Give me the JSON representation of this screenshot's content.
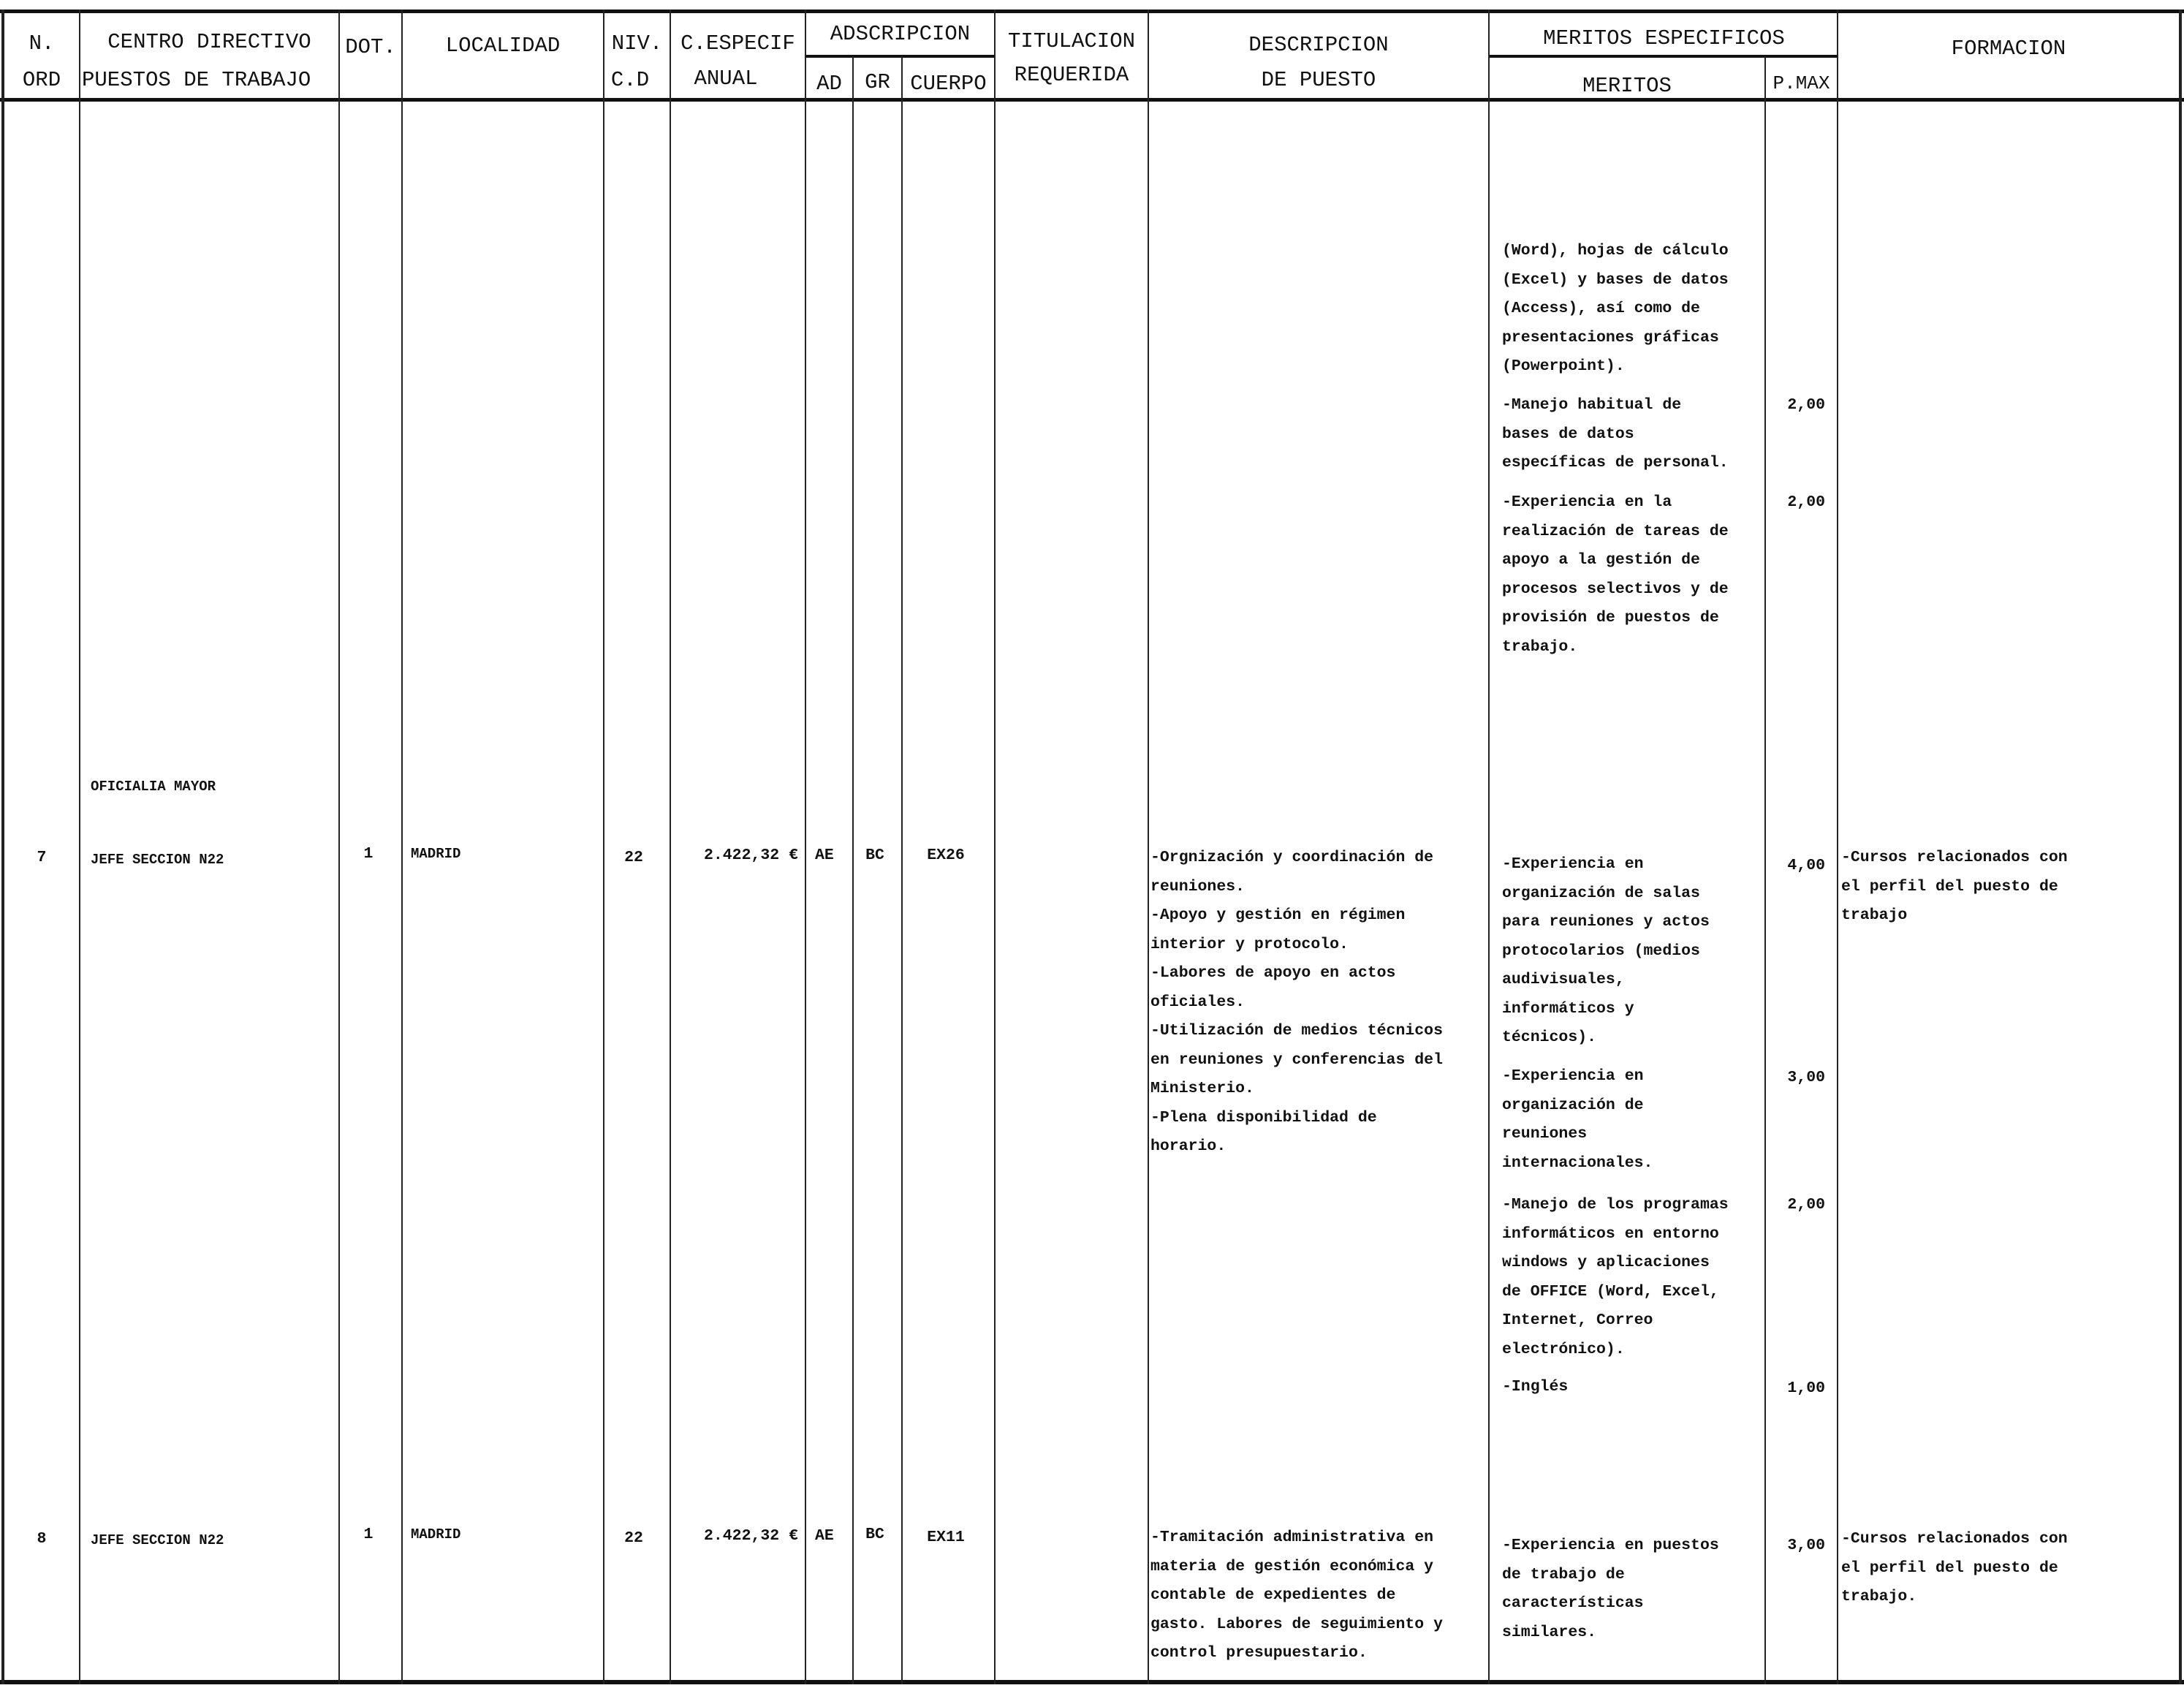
{
  "header": {
    "n_ord": [
      "N.",
      "ORD"
    ],
    "centro": [
      "CENTRO DIRECTIVO",
      "PUESTOS DE TRABAJO"
    ],
    "dot": "DOT.",
    "localidad": "LOCALIDAD",
    "niv": [
      "NIV.",
      "C.D"
    ],
    "c_especif": [
      "C.ESPECIF",
      "ANUAL"
    ],
    "adscripcion": "ADSCRIPCION",
    "ad": "AD",
    "gr": "GR",
    "cuerpo": "CUERPO",
    "titulacion": [
      "TITULACION",
      "REQUERIDA"
    ],
    "descripcion": [
      "DESCRIPCION",
      "DE PUESTO"
    ],
    "meritos_especificos": "MERITOS ESPECIFICOS",
    "meritos": "MERITOS",
    "pmax": "P.MAX",
    "formacion": "FORMACION"
  },
  "continuation": {
    "meritos": [
      {
        "text": "(Word), hojas de cálculo\n(Excel) y bases de datos\n(Access), así como de\npresentaciones gráficas\n(Powerpoint).",
        "pmax": ""
      },
      {
        "text": "-Manejo habitual de\nbases de datos\nespecíficas de personal.",
        "pmax": "2,00"
      },
      {
        "text": "-Experiencia en la\nrealización de tareas de\napoyo a la gestión de\nprocesos selectivos y de\nprovisión de puestos de\ntrabajo.",
        "pmax": "2,00"
      }
    ]
  },
  "group_heading": "OFICIALIA MAYOR",
  "rows": [
    {
      "n_ord": "7",
      "puesto": "JEFE SECCION N22",
      "dot": "1",
      "localidad": "MADRID",
      "niv": "22",
      "c_especif": "2.422,32 €",
      "ad": "AE",
      "gr": "BC",
      "cuerpo": "EX26",
      "titulacion": "",
      "descripcion": "-Orgnización y coordinación de\nreuniones.\n-Apoyo y gestión en régimen\ninterior y protocolo.\n-Labores de apoyo en actos\noficiales.\n-Utilización de medios técnicos\nen reuniones y conferencias del\nMinisterio.\n-Plena disponibilidad de\nhorario.",
      "meritos": [
        {
          "text": "-Experiencia en\norganización de salas\npara reuniones y actos\nprotocolarios (medios\naudivisuales,\ninformáticos y\ntécnicos).",
          "pmax": "4,00"
        },
        {
          "text": "-Experiencia en\norganización de\nreuniones\ninternacionales.",
          "pmax": "3,00"
        },
        {
          "text": "-Manejo de los programas\ninformáticos en entorno\nwindows y aplicaciones\nde OFFICE (Word, Excel,\nInternet, Correo\nelectrónico).",
          "pmax": "2,00"
        },
        {
          "text": "-Inglés",
          "pmax": "1,00"
        }
      ],
      "formacion": "-Cursos relacionados con\nel perfil del puesto de\ntrabajo"
    },
    {
      "n_ord": "8",
      "puesto": "JEFE SECCION N22",
      "dot": "1",
      "localidad": "MADRID",
      "niv": "22",
      "c_especif": "2.422,32 €",
      "ad": "AE",
      "gr": "BC",
      "cuerpo": "EX11",
      "titulacion": "",
      "descripcion": "-Tramitación administrativa en\nmateria de gestión económica y\ncontable de expedientes de\ngasto. Labores de seguimiento y\ncontrol presupuestario.",
      "meritos": [
        {
          "text": "-Experiencia en puestos\nde trabajo de\ncaracterísticas\nsimilares.",
          "pmax": "3,00"
        }
      ],
      "formacion": "-Cursos relacionados con\nel perfil del puesto de\ntrabajo."
    }
  ]
}
